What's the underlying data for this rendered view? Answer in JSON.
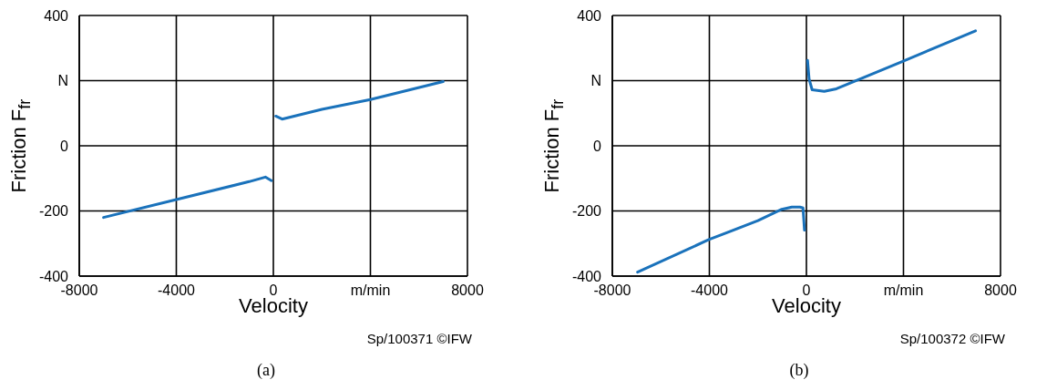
{
  "chart_data": [
    {
      "type": "line",
      "xlabel": "Velocity",
      "ylabel": "Friction F$_{fr}$",
      "xlim": [
        -8000,
        8000
      ],
      "xticks": [
        -8000,
        -4000,
        0,
        {
          "value": 4000,
          "label": "m/min"
        },
        8000
      ],
      "ylim": [
        -400,
        400
      ],
      "yticks": [
        -400,
        -200,
        0,
        {
          "value": 200,
          "label": "N"
        },
        400
      ],
      "grid": true,
      "line_style": "solid",
      "annotations": [
        "Sp/100371 ©IFW",
        "(a)"
      ],
      "series": [
        {
          "color": "#1a72bb",
          "x": [
            -7000,
            -4000,
            -1000,
            -330,
            -80
          ],
          "values": [
            -220,
            -165,
            -110,
            -96,
            -107
          ]
        },
        {
          "color": "#1a72bb",
          "x": [
            100,
            360,
            2000,
            4000,
            7000
          ],
          "values": [
            91,
            82,
            112,
            142,
            197
          ]
        }
      ]
    },
    {
      "type": "line",
      "xlabel": "Velocity",
      "ylabel": "Friction F$_{fr}$",
      "xlim": [
        -8000,
        8000
      ],
      "xticks": [
        -8000,
        -4000,
        0,
        {
          "value": 4000,
          "label": "m/min"
        },
        8000
      ],
      "ylim": [
        -400,
        400
      ],
      "yticks": [
        -400,
        -200,
        0,
        {
          "value": 200,
          "label": "N"
        },
        400
      ],
      "grid": true,
      "line_style": "solid",
      "annotations": [
        "Sp/100372 ©IFW",
        "(b)"
      ],
      "series": [
        {
          "color": "#1a72bb",
          "x": [
            -6960,
            -4020,
            -2000,
            -1016,
            -600,
            -265,
            -140,
            -80
          ],
          "values": [
            -388,
            -288,
            -230,
            -195,
            -188,
            -188,
            -191,
            -259
          ]
        },
        {
          "color": "#1a72bb",
          "x": [
            47,
            110,
            235,
            736,
            1236,
            1990,
            3990,
            6970
          ],
          "values": [
            262,
            205,
            172,
            167,
            175,
            198,
            260,
            353
          ]
        }
      ]
    }
  ]
}
